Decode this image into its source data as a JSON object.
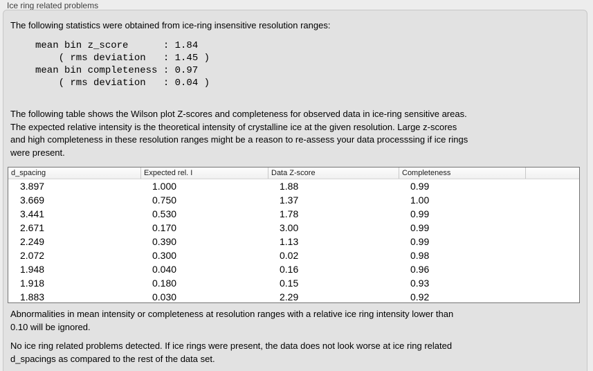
{
  "window": {
    "group_title": "Ice ring related problems"
  },
  "panel": {
    "intro": "The following statistics were obtained from ice-ring insensitive resolution ranges:",
    "stats_text": "mean bin z_score      : 1.84\n    ( rms deviation   : 1.45 )\nmean bin completeness : 0.97\n    ( rms deviation   : 0.04 )",
    "statistics": {
      "mean_bin_z_score": "1.84",
      "z_score_rms_deviation": "1.45",
      "mean_bin_completeness": "0.97",
      "completeness_rms_deviation": "0.04"
    },
    "table_intro": "The following table shows the Wilson plot Z-scores and completeness for observed data in ice-ring sensitive areas.\nThe expected relative intensity is the theoretical intensity of crystalline ice at the given resolution. Large z-scores\nand high completeness in these resolution ranges might be a reason to re-assess your data processsing if ice rings\nwere present.",
    "note": "Abnormalities in mean intensity or completeness at resolution ranges with a relative ice ring intensity lower than\n0.10 will be ignored.",
    "conclusion": "No ice ring related problems detected. If ice rings were present, the data does not look worse at ice ring related\nd_spacings as compared to the rest of the data set."
  },
  "table": {
    "columns": [
      "d_spacing",
      "Expected rel. I",
      "Data Z-score",
      "Completeness"
    ],
    "rows": [
      [
        "3.897",
        "1.000",
        "1.88",
        "0.99"
      ],
      [
        "3.669",
        "0.750",
        "1.37",
        "1.00"
      ],
      [
        "3.441",
        "0.530",
        "1.78",
        "0.99"
      ],
      [
        "2.671",
        "0.170",
        "3.00",
        "0.99"
      ],
      [
        "2.249",
        "0.390",
        "1.13",
        "0.99"
      ],
      [
        "2.072",
        "0.300",
        "0.02",
        "0.98"
      ],
      [
        "1.948",
        "0.040",
        "0.16",
        "0.96"
      ],
      [
        "1.918",
        "0.180",
        "0.15",
        "0.93"
      ],
      [
        "1.883",
        "0.030",
        "2.29",
        "0.92"
      ]
    ]
  },
  "colors": {
    "page_background": "#ededed",
    "panel_background": "#e2e2e2",
    "panel_border": "#c7c7c7",
    "table_background": "#ffffff",
    "table_border": "#747474",
    "header_gradient_top": "#fdfdfd",
    "header_gradient_bottom": "#f0f0f0",
    "text": "#000000",
    "title_text": "#3d3d3d"
  }
}
